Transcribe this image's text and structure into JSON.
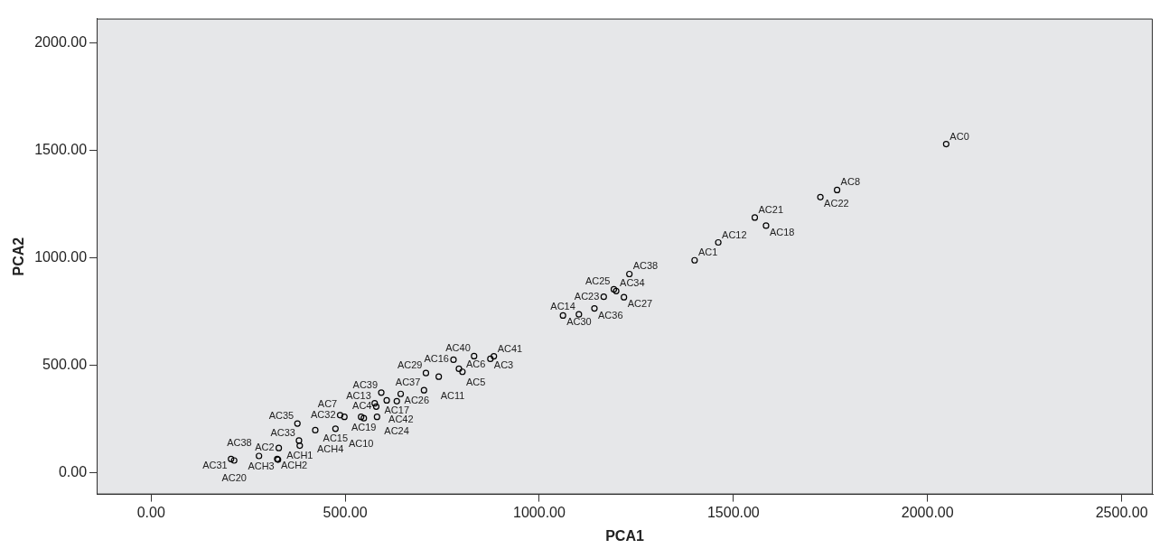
{
  "chart_data": {
    "type": "scatter",
    "xlabel": "PCA1",
    "ylabel": "PCA2",
    "xlim": [
      -140,
      2580
    ],
    "ylim": [
      -100,
      2115
    ],
    "xticks": [
      {
        "value": 0,
        "label": "0.00"
      },
      {
        "value": 500,
        "label": "500.00"
      },
      {
        "value": 1000,
        "label": "1000.00"
      },
      {
        "value": 1500,
        "label": "1500.00"
      },
      {
        "value": 2000,
        "label": "2000.00"
      },
      {
        "value": 2500,
        "label": "2500.00"
      }
    ],
    "yticks": [
      {
        "value": 0,
        "label": "0.00"
      },
      {
        "value": 500,
        "label": "500.00"
      },
      {
        "value": 1000,
        "label": "1000.00"
      },
      {
        "value": 1500,
        "label": "1500.00"
      },
      {
        "value": 2000,
        "label": "2000.00"
      }
    ],
    "grid": false,
    "marker": "circle",
    "series": [
      {
        "color": "#000000",
        "x": [
          2048,
          1767,
          1724,
          1555,
          1584,
          1461,
          1400,
          1232,
          1198,
          1192,
          1218,
          1166,
          1142,
          1102,
          1061,
          883,
          874,
          832,
          779,
          793,
          802,
          741,
          708,
          703,
          643,
          593,
          633,
          607,
          576,
          580,
          582,
          548,
          541,
          498,
          487,
          475,
          423,
          377,
          381,
          383,
          329,
          325,
          327,
          278,
          206,
          214
        ],
        "values": [
          1531,
          1317,
          1284,
          1189,
          1151,
          1073,
          990,
          926,
          847,
          855,
          818,
          820,
          766,
          738,
          733,
          543,
          531,
          544,
          527,
          485,
          471,
          448,
          465,
          385,
          368,
          374,
          334,
          338,
          324,
          309,
          261,
          255,
          261,
          261,
          269,
          206,
          199,
          230,
          151,
          127,
          116,
          65,
          62,
          79,
          65,
          58
        ],
        "value_labels": [
          "AC0",
          "AC8",
          "AC22",
          "AC21",
          "AC18",
          "AC12",
          "AC1",
          "AC38",
          "AC34",
          "AC25",
          "AC27",
          "AC23",
          "AC36",
          "AC14",
          "AC30",
          "AC41",
          "AC3",
          "AC40",
          "AC16",
          "AC5",
          "AC6",
          "AC11",
          "AC29",
          "AC37",
          "AC26",
          "AC39",
          "AC17",
          "AC42",
          "AC13",
          "AC4",
          "AC24",
          "AC19",
          "AC10",
          "AC7",
          "AC32",
          "AC15",
          "ACH4",
          "AC35",
          "AC33",
          "ACH1",
          "AC2",
          "ACH2",
          "ACH3",
          "AC38",
          "AC31",
          "AC20"
        ]
      }
    ]
  }
}
